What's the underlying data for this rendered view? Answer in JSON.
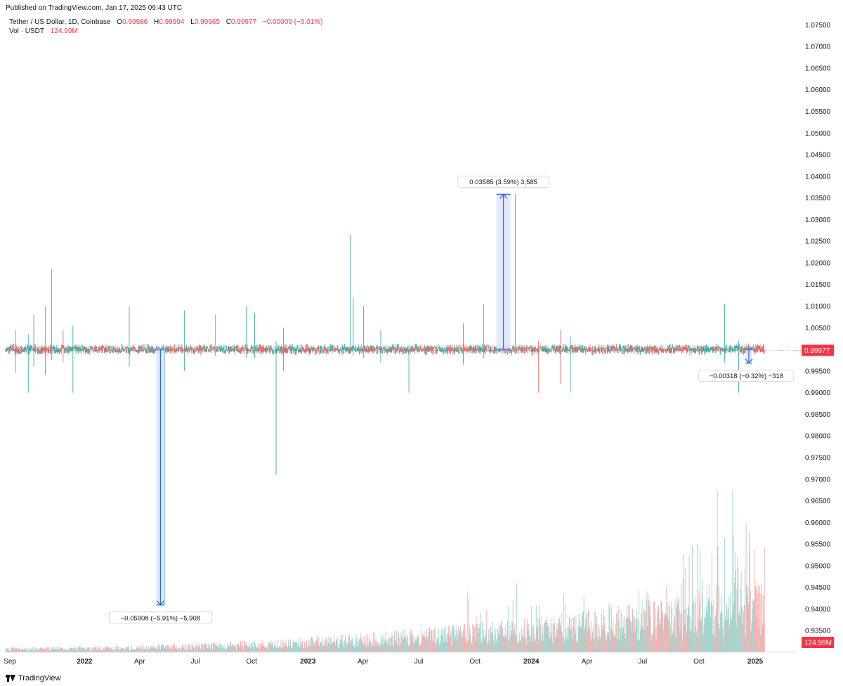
{
  "header": {
    "published": "Published on TradingView.com, Jan 17, 2025 09:43 UTC"
  },
  "legend": {
    "symbol": "Tether / US Dollar, 1D, Coinbase",
    "open_label": "O",
    "open": "0.99986",
    "high_label": "H",
    "high": "0.99994",
    "low_label": "L",
    "low": "0.99965",
    "close_label": "C",
    "close": "0.99977",
    "change": "−0.00009 (−0.01%)",
    "vol_label": "Vol · USDT",
    "vol_value": "124.99M"
  },
  "footer": {
    "brand": "TradingView"
  },
  "colors": {
    "up": "#26a69a",
    "down": "#ef5350",
    "badge": "#f23645",
    "measure": "#2962ff",
    "measure_fill": "#dde5fd"
  },
  "chart_data": {
    "type": "candlestick",
    "title": "Tether / US Dollar, 1D, Coinbase",
    "ylim": [
      0.93,
      1.0775
    ],
    "y_ticks": [
      "1.07500",
      "1.07000",
      "1.06500",
      "1.06000",
      "1.05500",
      "1.05000",
      "1.04500",
      "1.04000",
      "1.03500",
      "1.03000",
      "1.02500",
      "1.02000",
      "1.01500",
      "1.01000",
      "1.00500",
      "1.00000",
      "0.99500",
      "0.99000",
      "0.98500",
      "0.98000",
      "0.97500",
      "0.97000",
      "0.96500",
      "0.96000",
      "0.95500",
      "0.95000",
      "0.94500",
      "0.94000",
      "0.93500"
    ],
    "x_ticks": [
      {
        "label": "Sep",
        "date": "2021-09-01",
        "bold": false
      },
      {
        "label": "2022",
        "date": "2022-01-01",
        "bold": true
      },
      {
        "label": "Apr",
        "date": "2022-04-01",
        "bold": false
      },
      {
        "label": "Jul",
        "date": "2022-07-01",
        "bold": false
      },
      {
        "label": "Oct",
        "date": "2022-10-01",
        "bold": false
      },
      {
        "label": "2023",
        "date": "2023-01-01",
        "bold": true
      },
      {
        "label": "Apr",
        "date": "2023-04-01",
        "bold": false
      },
      {
        "label": "Jul",
        "date": "2023-07-01",
        "bold": false
      },
      {
        "label": "Oct",
        "date": "2023-10-01",
        "bold": false
      },
      {
        "label": "2024",
        "date": "2024-01-01",
        "bold": true
      },
      {
        "label": "Apr",
        "date": "2024-04-01",
        "bold": false
      },
      {
        "label": "Jul",
        "date": "2024-07-01",
        "bold": false
      },
      {
        "label": "Oct",
        "date": "2024-10-01",
        "bold": false
      },
      {
        "label": "2025",
        "date": "2025-01-01",
        "bold": true
      }
    ],
    "x_range": [
      "2021-08-25",
      "2025-01-25"
    ],
    "last_price": "0.99977",
    "last_volume": "124.99M",
    "price_spikes": [
      {
        "date": "2021-09-10",
        "high": 1.0045,
        "low": 0.9945
      },
      {
        "date": "2021-10-01",
        "high": 1.0035,
        "low": 0.99
      },
      {
        "date": "2021-10-10",
        "high": 1.008,
        "low": 0.996
      },
      {
        "date": "2021-10-29",
        "high": 1.01,
        "low": 0.994
      },
      {
        "date": "2021-11-08",
        "high": 1.0185,
        "low": 0.9975
      },
      {
        "date": "2021-11-27",
        "high": 1.0045,
        "low": 0.997
      },
      {
        "date": "2021-12-13",
        "high": 1.0055,
        "low": 0.99
      },
      {
        "date": "2022-03-15",
        "high": 1.01,
        "low": 0.996
      },
      {
        "date": "2022-05-12",
        "high": 1.0,
        "low": 0.941
      },
      {
        "date": "2022-06-13",
        "high": 1.009,
        "low": 0.995
      },
      {
        "date": "2022-08-03",
        "high": 1.008,
        "low": 0.9985
      },
      {
        "date": "2022-09-22",
        "high": 1.01,
        "low": 0.998
      },
      {
        "date": "2022-10-06",
        "high": 1.0085,
        "low": 0.998
      },
      {
        "date": "2022-11-10",
        "high": 1.002,
        "low": 0.971
      },
      {
        "date": "2022-11-22",
        "high": 1.005,
        "low": 0.995
      },
      {
        "date": "2023-03-11",
        "high": 1.0265,
        "low": 0.999
      },
      {
        "date": "2023-03-16",
        "high": 1.012,
        "low": 0.9985
      },
      {
        "date": "2023-04-02",
        "high": 1.01,
        "low": 0.998
      },
      {
        "date": "2023-04-30",
        "high": 1.0045,
        "low": 0.997
      },
      {
        "date": "2023-06-15",
        "high": 1.001,
        "low": 0.99
      },
      {
        "date": "2023-09-12",
        "high": 1.006,
        "low": 0.9965
      },
      {
        "date": "2023-10-15",
        "high": 1.0105,
        "low": 0.998
      },
      {
        "date": "2023-12-06",
        "high": 1.036,
        "low": 0.999
      },
      {
        "date": "2024-01-13",
        "high": 1.002,
        "low": 0.99
      },
      {
        "date": "2024-02-18",
        "high": 1.0045,
        "low": 0.992
      },
      {
        "date": "2024-03-05",
        "high": 1.003,
        "low": 0.99
      },
      {
        "date": "2024-11-12",
        "high": 1.0105,
        "low": 0.997
      },
      {
        "date": "2024-12-05",
        "high": 1.002,
        "low": 0.99
      }
    ],
    "volume_bars_visible": true,
    "measurements": [
      {
        "label": "−0.05908 (−5.91%) −5,908",
        "from_date": "2022-04-28",
        "to_date": "2022-05-12",
        "from_price": 1.0,
        "to_price": 0.94092
      },
      {
        "label": "0.03585 (3.59%) 3,585",
        "from_date": "2023-11-05",
        "to_date": "2023-11-28",
        "from_price": 1.0,
        "to_price": 1.03585
      },
      {
        "label": "−0.00318 (−0.32%) −318",
        "from_date": "2024-12-16",
        "to_date": "2024-12-27",
        "from_price": 1.0,
        "to_price": 0.99682
      }
    ]
  }
}
